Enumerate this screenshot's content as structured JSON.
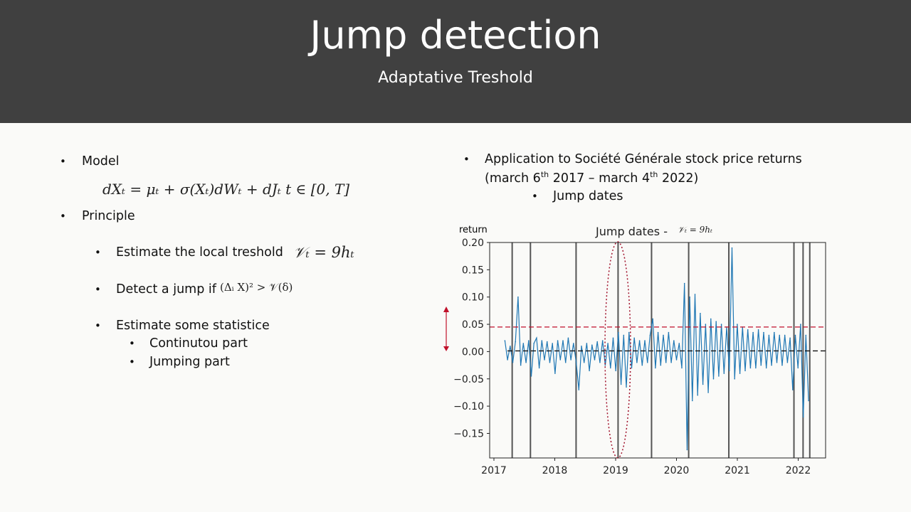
{
  "header": {
    "title": "Jump detection",
    "subtitle": "Adaptative Treshold"
  },
  "left": {
    "model_label": "Model",
    "model_formula": "dXₜ = μₜ + σ(Xₜ)dWₜ + dJₜ  t ∈ [0, T]",
    "principle_label": "Principle",
    "items": [
      {
        "label": "Estimate the local treshold",
        "formula": "𝒱ₜ = 9hₜ"
      },
      {
        "label": "Detect a jump if",
        "formula": "(Δᵢ X)² > 𝒱(δ)"
      },
      {
        "label": "Estimate some statistice"
      }
    ],
    "sub_items": [
      "Continutou part",
      "Jumping part"
    ]
  },
  "right": {
    "line1": "Application to Société Générale stock price returns",
    "line2_pre": "(march 6",
    "sup1": "th",
    "line2_mid": " 2017 – march 4",
    "sup2": "th",
    "line2_post": " 2022)",
    "sub_item": "Jump dates"
  },
  "colors": {
    "series": "#1f77b4",
    "threshold": "#c0102a",
    "jump_line": "#555555",
    "annotation": "#c0102a"
  },
  "chart_data": {
    "type": "line",
    "title": "Jump dates - ",
    "title_formula": "𝒱ₜ = 9hₜ",
    "ylabel": "return",
    "xlabel": "",
    "xlim": [
      2016.93,
      2022.45
    ],
    "ylim": [
      -0.195,
      0.2
    ],
    "xticks": [
      "2017",
      "2018",
      "2019",
      "2020",
      "2021",
      "2022"
    ],
    "yticks": [
      "0.20",
      "0.15",
      "0.10",
      "0.05",
      "0.00",
      "−0.05",
      "−0.10",
      "−0.15"
    ],
    "ytick_values": [
      0.2,
      0.15,
      0.1,
      0.05,
      0.0,
      -0.05,
      -0.1,
      -0.15
    ],
    "series_start": 2017.18,
    "series_end": 2022.17,
    "returns": [
      0.02,
      -0.015,
      0.01,
      -0.02,
      0.018,
      0.1,
      -0.025,
      0.015,
      -0.02,
      0.02,
      -0.045,
      0.015,
      0.025,
      -0.03,
      0.02,
      -0.015,
      0.018,
      -0.02,
      0.015,
      -0.04,
      0.02,
      -0.015,
      0.02,
      -0.02,
      0.025,
      -0.015,
      0.015,
      -0.02,
      -0.07,
      0.01,
      -0.02,
      0.015,
      -0.035,
      0.012,
      -0.015,
      0.018,
      -0.02,
      0.02,
      -0.025,
      0.015,
      -0.03,
      0.025,
      -0.035,
      0.035,
      -0.06,
      0.03,
      -0.065,
      0.035,
      -0.03,
      0.025,
      -0.02,
      0.02,
      -0.025,
      0.02,
      -0.02,
      0.03,
      0.06,
      -0.03,
      0.035,
      -0.025,
      0.03,
      -0.02,
      0.035,
      -0.02,
      0.02,
      -0.015,
      0.015,
      -0.03,
      0.125,
      -0.18,
      0.1,
      -0.09,
      0.105,
      -0.08,
      0.07,
      -0.06,
      0.05,
      -0.075,
      0.06,
      -0.05,
      0.055,
      -0.045,
      0.05,
      -0.04,
      0.045,
      -0.035,
      0.19,
      -0.05,
      0.05,
      -0.04,
      0.045,
      -0.035,
      0.04,
      -0.03,
      0.035,
      -0.03,
      0.04,
      -0.025,
      0.035,
      -0.03,
      0.03,
      -0.025,
      0.035,
      -0.02,
      0.03,
      -0.025,
      0.03,
      -0.02,
      0.025,
      -0.07,
      0.03,
      -0.03,
      0.05,
      -0.12,
      0.03,
      -0.09
    ],
    "jump_dates": [
      2017.3,
      2017.6,
      2018.35,
      2019.04,
      2019.59,
      2020.2,
      2020.86,
      2021.93,
      2022.08,
      2022.19
    ],
    "threshold": 0.045,
    "zero_line": 0.0,
    "grid": false
  }
}
